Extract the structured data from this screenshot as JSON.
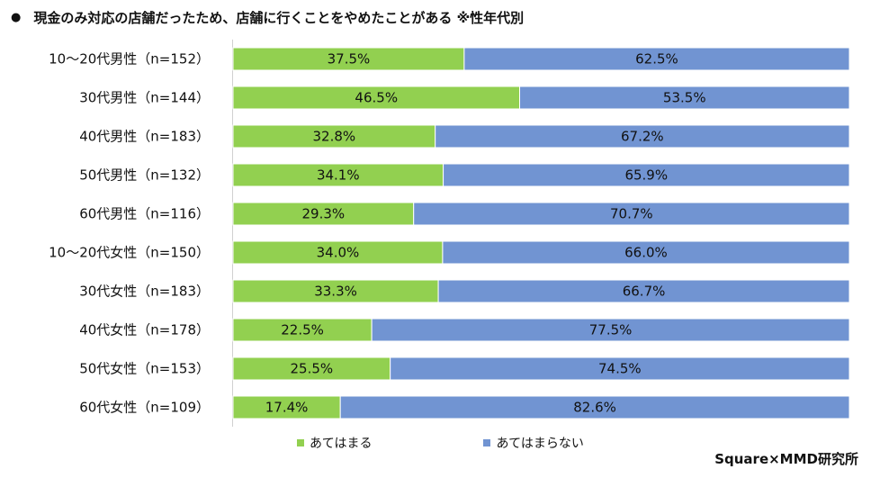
{
  "title": "現金のみ対応の店舗だったため、店舗に行くことをやめたことがある ※性年代別",
  "title_bullet": "●",
  "credit": "Square×MMD研究所",
  "chart_data": {
    "type": "bar",
    "orientation": "horizontal",
    "stacked": "percent",
    "categories": [
      "10～20代男性（n=152）",
      "30代男性（n=144）",
      "40代男性（n=183）",
      "50代男性（n=132）",
      "60代男性（n=116）",
      "10～20代女性（n=150）",
      "30代女性（n=183）",
      "40代女性（n=178）",
      "50代女性（n=153）",
      "60代女性（n=109）"
    ],
    "series": [
      {
        "name": "あてはまる",
        "color": "#92d050",
        "values": [
          37.5,
          46.5,
          32.8,
          34.1,
          29.3,
          34.0,
          33.3,
          22.5,
          25.5,
          17.4
        ]
      },
      {
        "name": "あてはまらない",
        "color": "#7194d2",
        "values": [
          62.5,
          53.5,
          67.2,
          65.9,
          70.7,
          66.0,
          66.7,
          77.5,
          74.5,
          82.6
        ]
      }
    ],
    "xlim": [
      0,
      100
    ],
    "legend_position": "bottom",
    "grid": false
  }
}
